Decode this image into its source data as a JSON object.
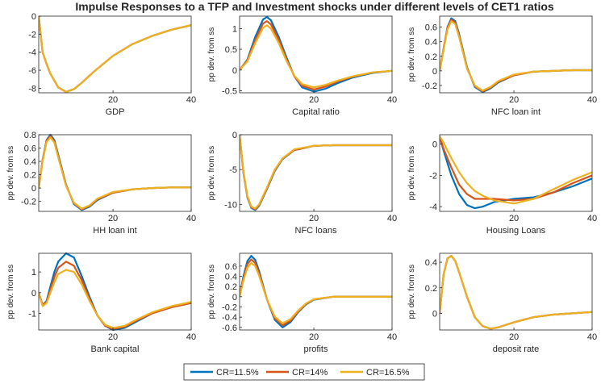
{
  "figure": {
    "title": "Impulse Responses to a TFP and Investment shocks under different levels of CET1 ratios",
    "legend": [
      {
        "name": "CR=11.5%",
        "color": "#0072BD"
      },
      {
        "name": "CR=14%",
        "color": "#D95319"
      },
      {
        "name": "CR=16.5%",
        "color": "#EDB120"
      }
    ]
  },
  "chart_data": [
    {
      "type": "line",
      "xlabel": "GDP",
      "ylabel": "",
      "xlim": [
        1,
        40
      ],
      "ylim": [
        -8.5,
        0
      ],
      "xticks": [
        20,
        40
      ],
      "yticks": [
        0,
        -2,
        -4,
        -6,
        -8
      ],
      "ytick_labels": [
        "0",
        "-2",
        "-4",
        "-6",
        "-8"
      ],
      "x": [
        1,
        2,
        3,
        4,
        6,
        8,
        10,
        12,
        15,
        20,
        25,
        30,
        35,
        40
      ],
      "series": [
        {
          "name": "CR=11.5%",
          "values": [
            0,
            -4.0,
            -5.3,
            -6.4,
            -7.9,
            -8.4,
            -8.1,
            -7.4,
            -6.2,
            -4.4,
            -3.1,
            -2.2,
            -1.5,
            -1.0
          ]
        },
        {
          "name": "CR=14%",
          "values": [
            0,
            -4.0,
            -5.3,
            -6.4,
            -7.9,
            -8.4,
            -8.1,
            -7.4,
            -6.2,
            -4.4,
            -3.1,
            -2.2,
            -1.5,
            -1.0
          ]
        },
        {
          "name": "CR=16.5%",
          "values": [
            0,
            -4.0,
            -5.3,
            -6.4,
            -7.9,
            -8.4,
            -8.1,
            -7.4,
            -6.2,
            -4.4,
            -3.1,
            -2.2,
            -1.5,
            -1.0
          ]
        }
      ]
    },
    {
      "type": "line",
      "xlabel": "Capital ratio",
      "ylabel": "pp dev. from ss",
      "xlim": [
        1,
        40
      ],
      "ylim": [
        -0.55,
        1.3
      ],
      "xticks": [
        20,
        40
      ],
      "yticks": [
        1,
        0.5,
        0,
        -0.5
      ],
      "ytick_labels": [
        "1",
        "0.5",
        "0",
        "-0.5"
      ],
      "x": [
        1,
        3,
        5,
        7,
        8,
        9,
        11,
        13,
        15,
        17,
        20,
        23,
        26,
        30,
        35,
        40
      ],
      "series": [
        {
          "name": "CR=11.5%",
          "values": [
            0,
            0.25,
            0.8,
            1.22,
            1.28,
            1.2,
            0.8,
            0.3,
            -0.15,
            -0.42,
            -0.52,
            -0.45,
            -0.32,
            -0.18,
            -0.07,
            -0.02
          ]
        },
        {
          "name": "CR=14%",
          "values": [
            0,
            0.23,
            0.72,
            1.12,
            1.18,
            1.1,
            0.73,
            0.26,
            -0.15,
            -0.38,
            -0.47,
            -0.4,
            -0.28,
            -0.16,
            -0.06,
            -0.02
          ]
        },
        {
          "name": "CR=16.5%",
          "values": [
            0,
            0.21,
            0.65,
            1.02,
            1.08,
            1.0,
            0.65,
            0.22,
            -0.14,
            -0.34,
            -0.42,
            -0.36,
            -0.26,
            -0.15,
            -0.06,
            -0.02
          ]
        }
      ]
    },
    {
      "type": "line",
      "xlabel": "NFC loan int",
      "ylabel": "pp dev. from ss",
      "xlim": [
        1,
        40
      ],
      "ylim": [
        -0.3,
        0.75
      ],
      "xticks": [
        20,
        40
      ],
      "yticks": [
        0.6,
        0.4,
        0.2,
        0,
        -0.2
      ],
      "ytick_labels": [
        "0.6",
        "0.4",
        "0.2",
        "0",
        "-0.2"
      ],
      "x": [
        1,
        2,
        3,
        4,
        5,
        6,
        8,
        10,
        12,
        14,
        16,
        20,
        25,
        30,
        35,
        40
      ],
      "series": [
        {
          "name": "CR=11.5%",
          "values": [
            0,
            0.3,
            0.6,
            0.72,
            0.68,
            0.5,
            0.05,
            -0.22,
            -0.29,
            -0.24,
            -0.16,
            -0.06,
            -0.01,
            0.0,
            0.01,
            0.01
          ]
        },
        {
          "name": "CR=14%",
          "values": [
            0,
            0.29,
            0.59,
            0.7,
            0.66,
            0.48,
            0.04,
            -0.21,
            -0.28,
            -0.23,
            -0.15,
            -0.06,
            -0.01,
            0.0,
            0.01,
            0.01
          ]
        },
        {
          "name": "CR=16.5%",
          "values": [
            0,
            0.28,
            0.57,
            0.68,
            0.64,
            0.46,
            0.03,
            -0.2,
            -0.27,
            -0.22,
            -0.14,
            -0.05,
            -0.01,
            0.0,
            0.01,
            0.01
          ]
        }
      ]
    },
    {
      "type": "line",
      "xlabel": "HH loan int",
      "ylabel": "pp dev. from ss",
      "xlim": [
        1,
        40
      ],
      "ylim": [
        -0.35,
        0.8
      ],
      "xticks": [
        20,
        40
      ],
      "yticks": [
        0.8,
        0.6,
        0.4,
        0.2,
        0,
        -0.2
      ],
      "ytick_labels": [
        "0.8",
        "0.6",
        "0.4",
        "0.2",
        "0",
        "-0.2"
      ],
      "x": [
        1,
        2,
        3,
        4,
        5,
        6,
        8,
        10,
        12,
        14,
        16,
        20,
        25,
        30,
        35,
        40
      ],
      "series": [
        {
          "name": "CR=11.5%",
          "values": [
            0,
            0.42,
            0.72,
            0.8,
            0.72,
            0.5,
            0.05,
            -0.24,
            -0.33,
            -0.28,
            -0.18,
            -0.07,
            -0.02,
            0.0,
            0.01,
            0.01
          ]
        },
        {
          "name": "CR=14%",
          "values": [
            0,
            0.41,
            0.71,
            0.78,
            0.7,
            0.48,
            0.04,
            -0.23,
            -0.32,
            -0.27,
            -0.17,
            -0.07,
            -0.02,
            0.0,
            0.01,
            0.01
          ]
        },
        {
          "name": "CR=16.5%",
          "values": [
            0,
            0.4,
            0.69,
            0.76,
            0.68,
            0.46,
            0.03,
            -0.22,
            -0.31,
            -0.26,
            -0.16,
            -0.06,
            -0.02,
            0.0,
            0.01,
            0.01
          ]
        }
      ]
    },
    {
      "type": "line",
      "xlabel": "NFC loans",
      "ylabel": "pp dev. from ss",
      "xlim": [
        1,
        40
      ],
      "ylim": [
        -11,
        0
      ],
      "xticks": [
        20,
        40
      ],
      "yticks": [
        0,
        -5,
        -10
      ],
      "ytick_labels": [
        "0",
        "-5",
        "-10"
      ],
      "x": [
        1,
        2,
        3,
        4,
        5,
        6,
        8,
        10,
        12,
        15,
        20,
        25,
        30,
        35,
        40
      ],
      "series": [
        {
          "name": "CR=11.5%",
          "values": [
            0,
            -5.5,
            -9.0,
            -10.5,
            -10.8,
            -10.2,
            -7.8,
            -5.2,
            -3.5,
            -2.2,
            -1.6,
            -1.5,
            -1.5,
            -1.5,
            -1.5
          ]
        },
        {
          "name": "CR=14%",
          "values": [
            0,
            -5.4,
            -8.9,
            -10.4,
            -10.7,
            -10.1,
            -7.7,
            -5.1,
            -3.4,
            -2.2,
            -1.6,
            -1.5,
            -1.5,
            -1.5,
            -1.5
          ]
        },
        {
          "name": "CR=16.5%",
          "values": [
            0,
            -5.3,
            -8.8,
            -10.3,
            -10.6,
            -10.0,
            -7.6,
            -5.0,
            -3.4,
            -2.1,
            -1.6,
            -1.5,
            -1.5,
            -1.5,
            -1.5
          ]
        }
      ]
    },
    {
      "type": "line",
      "xlabel": "Housing Loans",
      "ylabel": "pp dev. from ss",
      "xlim": [
        1,
        40
      ],
      "ylim": [
        -4.3,
        0.6
      ],
      "xticks": [
        20,
        40
      ],
      "yticks": [
        0,
        -2,
        -4
      ],
      "ytick_labels": [
        "0",
        "-2",
        "-4"
      ],
      "x": [
        1,
        2,
        4,
        6,
        8,
        10,
        12,
        15,
        20,
        25,
        30,
        35,
        40
      ],
      "series": [
        {
          "name": "CR=11.5%",
          "values": [
            0.5,
            -0.4,
            -2.0,
            -3.2,
            -3.9,
            -4.1,
            -4.0,
            -3.7,
            -3.5,
            -3.4,
            -3.1,
            -2.7,
            -2.2
          ]
        },
        {
          "name": "CR=14%",
          "values": [
            0.5,
            -0.3,
            -1.5,
            -2.6,
            -3.2,
            -3.5,
            -3.5,
            -3.5,
            -3.6,
            -3.5,
            -3.1,
            -2.5,
            -2.0
          ]
        },
        {
          "name": "CR=16.5%",
          "values": [
            0.5,
            0.1,
            -0.9,
            -1.8,
            -2.5,
            -3.0,
            -3.3,
            -3.6,
            -3.8,
            -3.5,
            -2.9,
            -2.3,
            -1.8
          ]
        }
      ]
    },
    {
      "type": "line",
      "xlabel": "Bank capital",
      "ylabel": "pp dev. from ss",
      "xlim": [
        1,
        40
      ],
      "ylim": [
        -1.8,
        1.9
      ],
      "xticks": [
        20,
        40
      ],
      "yticks": [
        1,
        0,
        -1
      ],
      "ytick_labels": [
        "1",
        "0",
        "-1"
      ],
      "x": [
        1,
        2,
        3,
        4,
        5,
        6,
        8,
        10,
        12,
        14,
        16,
        18,
        20,
        23,
        26,
        30,
        35,
        40
      ],
      "series": [
        {
          "name": "CR=11.5%",
          "values": [
            0,
            -0.6,
            -0.4,
            0.3,
            1.0,
            1.5,
            1.9,
            1.7,
            0.8,
            -0.2,
            -1.1,
            -1.6,
            -1.8,
            -1.7,
            -1.4,
            -1.0,
            -0.7,
            -0.5
          ]
        },
        {
          "name": "CR=14%",
          "values": [
            0,
            -0.6,
            -0.45,
            0.15,
            0.75,
            1.2,
            1.5,
            1.3,
            0.6,
            -0.3,
            -1.1,
            -1.6,
            -1.75,
            -1.65,
            -1.35,
            -1.0,
            -0.7,
            -0.5
          ]
        },
        {
          "name": "CR=16.5%",
          "values": [
            0,
            -0.65,
            -0.5,
            0.0,
            0.5,
            0.9,
            1.1,
            1.0,
            0.4,
            -0.4,
            -1.1,
            -1.55,
            -1.7,
            -1.6,
            -1.3,
            -0.95,
            -0.65,
            -0.45
          ]
        }
      ]
    },
    {
      "type": "line",
      "xlabel": "profits",
      "ylabel": "pp dev. from ss",
      "xlim": [
        1,
        40
      ],
      "ylim": [
        -0.65,
        0.85
      ],
      "xticks": [
        20,
        40
      ],
      "yticks": [
        0.6,
        0.4,
        0.2,
        0,
        -0.2,
        -0.4,
        -0.6
      ],
      "ytick_labels": [
        "0.6",
        "0.4",
        "0.2",
        "0",
        "-0.2",
        "-0.4",
        "-0.6"
      ],
      "x": [
        1,
        2,
        3,
        4,
        5,
        6,
        8,
        10,
        12,
        14,
        16,
        18,
        20,
        25,
        30,
        35,
        40
      ],
      "series": [
        {
          "name": "CR=11.5%",
          "values": [
            0,
            0.4,
            0.7,
            0.8,
            0.72,
            0.5,
            -0.05,
            -0.45,
            -0.6,
            -0.5,
            -0.3,
            -0.15,
            -0.06,
            0.0,
            0.0,
            0.0,
            0.0
          ]
        },
        {
          "name": "CR=14%",
          "values": [
            0,
            0.36,
            0.64,
            0.73,
            0.66,
            0.46,
            -0.05,
            -0.42,
            -0.56,
            -0.47,
            -0.29,
            -0.14,
            -0.05,
            0.0,
            0.0,
            0.0,
            0.0
          ]
        },
        {
          "name": "CR=16.5%",
          "values": [
            0,
            0.32,
            0.57,
            0.66,
            0.6,
            0.41,
            -0.05,
            -0.39,
            -0.52,
            -0.44,
            -0.27,
            -0.13,
            -0.05,
            0.0,
            0.0,
            0.0,
            0.0
          ]
        }
      ]
    },
    {
      "type": "line",
      "xlabel": "deposit rate",
      "ylabel": "pp dev. from ss",
      "xlim": [
        1,
        40
      ],
      "ylim": [
        -0.13,
        0.47
      ],
      "xticks": [
        20,
        40
      ],
      "yticks": [
        0.4,
        0.2,
        0
      ],
      "ytick_labels": [
        "0.4",
        "0.2",
        "0"
      ],
      "x": [
        1,
        2,
        3,
        4,
        5,
        6,
        8,
        10,
        12,
        14,
        16,
        20,
        25,
        30,
        35,
        40
      ],
      "series": [
        {
          "name": "CR=11.5%",
          "values": [
            0,
            0.3,
            0.43,
            0.45,
            0.41,
            0.32,
            0.13,
            -0.03,
            -0.1,
            -0.12,
            -0.11,
            -0.07,
            -0.03,
            -0.01,
            0.0,
            0.01
          ]
        },
        {
          "name": "CR=14%",
          "values": [
            0,
            0.3,
            0.43,
            0.45,
            0.41,
            0.32,
            0.13,
            -0.03,
            -0.1,
            -0.12,
            -0.11,
            -0.07,
            -0.03,
            -0.01,
            0.0,
            0.01
          ]
        },
        {
          "name": "CR=16.5%",
          "values": [
            0,
            0.3,
            0.43,
            0.45,
            0.41,
            0.32,
            0.13,
            -0.03,
            -0.1,
            -0.12,
            -0.11,
            -0.07,
            -0.03,
            -0.01,
            0.0,
            0.01
          ]
        }
      ]
    }
  ]
}
